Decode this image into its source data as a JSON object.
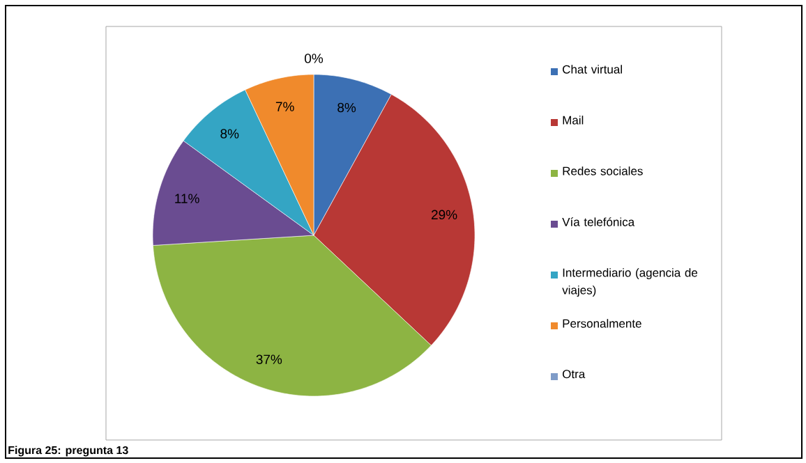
{
  "chart_data": {
    "type": "pie",
    "categories": [
      "Chat virtual",
      "Mail",
      "Redes sociales",
      "Vía telefónica",
      "Intermediario (agencia de viajes)",
      "Personalmente",
      "Otra"
    ],
    "values": [
      8,
      29,
      37,
      11,
      8,
      7,
      0
    ],
    "value_labels": [
      "8%",
      "29%",
      "37%",
      "11%",
      "8%",
      "7%",
      "0%"
    ],
    "colors": [
      "#3c70b4",
      "#b83835",
      "#8db443",
      "#6a4c91",
      "#34a5c4",
      "#f08a2c",
      "#7f9cc8"
    ],
    "legend": "right",
    "annotations": [
      "Figura 25: pregunta 13"
    ]
  }
}
